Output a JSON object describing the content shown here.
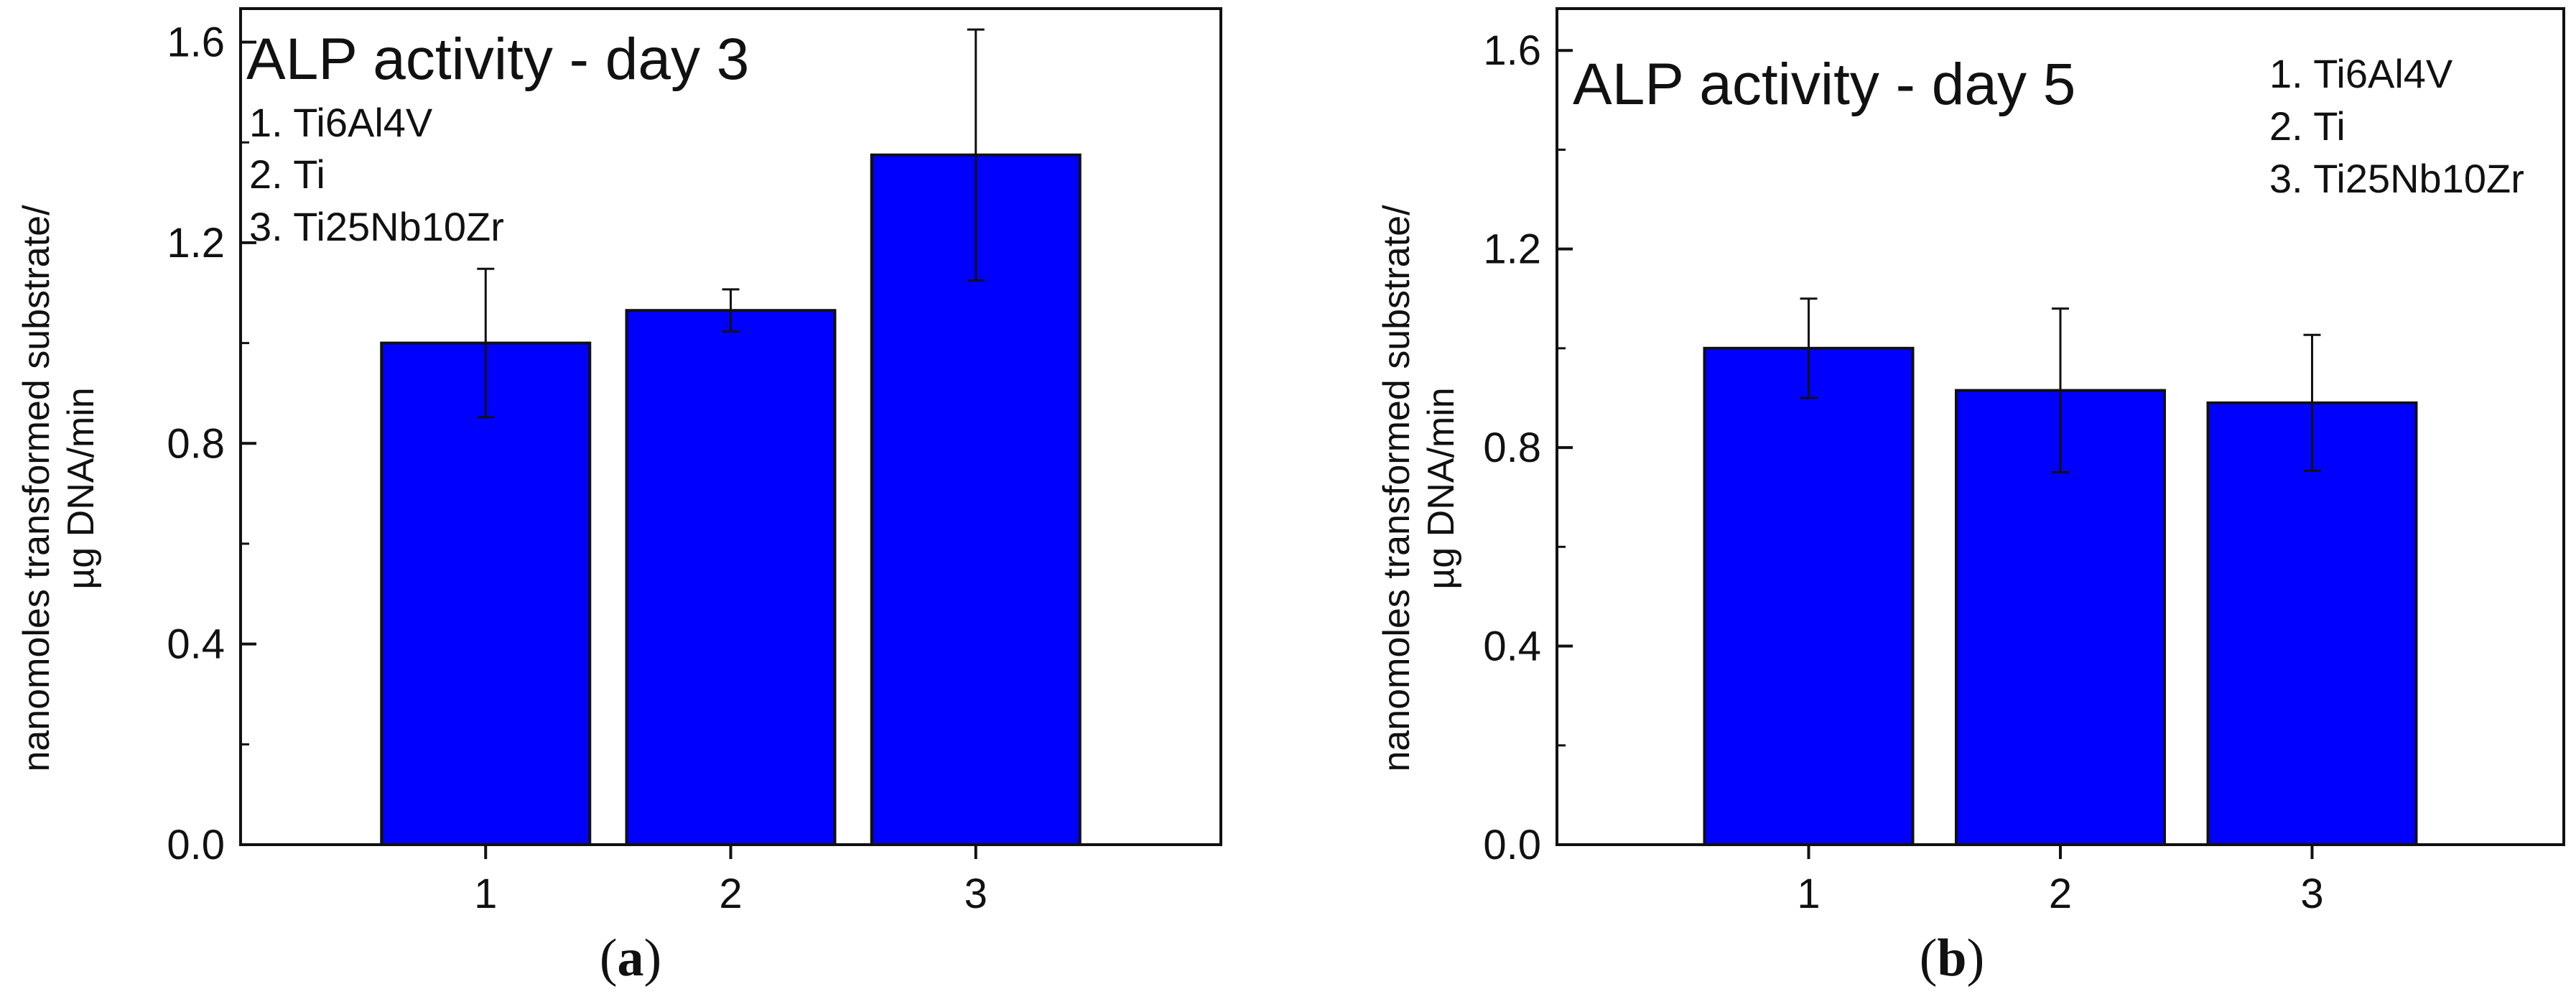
{
  "chart_data": [
    {
      "type": "bar",
      "panel_label": "(a)",
      "title": "ALP activity - day 3",
      "legend_items": [
        "1. Ti6Al4V",
        "2. Ti",
        "3. Ti25Nb10Zr"
      ],
      "ylabel_line1": "nanomoles transformed substrate/",
      "ylabel_line2": "µg DNA/min",
      "categories": [
        "1",
        "2",
        "3"
      ],
      "values": [
        1.0,
        1.065,
        1.375
      ],
      "errors": [
        0.148,
        0.042,
        0.25
      ],
      "ylim": [
        0,
        1.6667
      ],
      "yticks": [
        0.0,
        0.4,
        0.8,
        1.2,
        1.6
      ],
      "ytick_labels": [
        "0.0",
        "0.4",
        "0.8",
        "1.2",
        "1.6"
      ],
      "bar_color": "#0000ff"
    },
    {
      "type": "bar",
      "panel_label": "(b)",
      "title": "ALP activity - day 5",
      "legend_items": [
        "1. Ti6Al4V",
        "2. Ti",
        "3. Ti25Nb10Zr"
      ],
      "ylabel_line1": "nanomoles transformed substrate/",
      "ylabel_line2": "µg DNA/min",
      "categories": [
        "1",
        "2",
        "3"
      ],
      "values": [
        1.0,
        0.915,
        0.89
      ],
      "errors": [
        0.1,
        0.165,
        0.137
      ],
      "ylim": [
        0,
        1.6842
      ],
      "yticks": [
        0.0,
        0.4,
        0.8,
        1.2,
        1.6
      ],
      "ytick_labels": [
        "0.0",
        "0.4",
        "0.8",
        "1.2",
        "1.6"
      ],
      "bar_color": "#0000ff"
    }
  ]
}
